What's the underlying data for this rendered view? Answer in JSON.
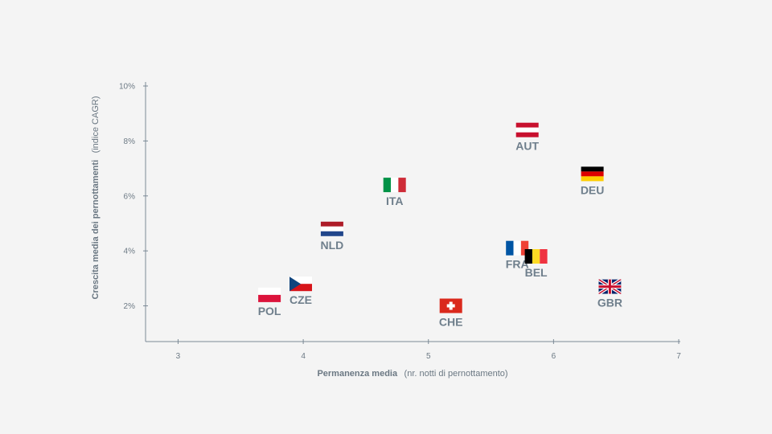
{
  "chart_data": {
    "type": "scatter",
    "xlabel_bold": "Permanenza media",
    "xlabel_normal": "(nr. notti di pernottamento)",
    "ylabel_bold": "Crescita media dei pernottamenti",
    "ylabel_normal": "(indice CAGR)",
    "xlim": [
      2.74,
      7
    ],
    "ylim": [
      0.7,
      10
    ],
    "x_ticks": [
      3,
      4,
      5,
      6,
      7
    ],
    "x_tick_labels": [
      "3",
      "4",
      "5",
      "6",
      "7"
    ],
    "y_ticks": [
      2,
      4,
      6,
      8,
      10
    ],
    "y_tick_labels": [
      "2%",
      "4%",
      "6%",
      "8%",
      "10%"
    ],
    "grid": false,
    "points": [
      {
        "label": "AUT",
        "x": 5.79,
        "y": 8.4
      },
      {
        "label": "DEU",
        "x": 6.31,
        "y": 6.8
      },
      {
        "label": "ITA",
        "x": 4.73,
        "y": 6.4
      },
      {
        "label": "NLD",
        "x": 4.23,
        "y": 4.8
      },
      {
        "label": "FRA",
        "x": 5.71,
        "y": 4.1
      },
      {
        "label": "BEL",
        "x": 5.86,
        "y": 3.8
      },
      {
        "label": "GBR",
        "x": 6.45,
        "y": 2.7
      },
      {
        "label": "CHE",
        "x": 5.18,
        "y": 2.0
      },
      {
        "label": "CZE",
        "x": 3.98,
        "y": 2.8
      },
      {
        "label": "POL",
        "x": 3.73,
        "y": 2.4
      }
    ]
  }
}
